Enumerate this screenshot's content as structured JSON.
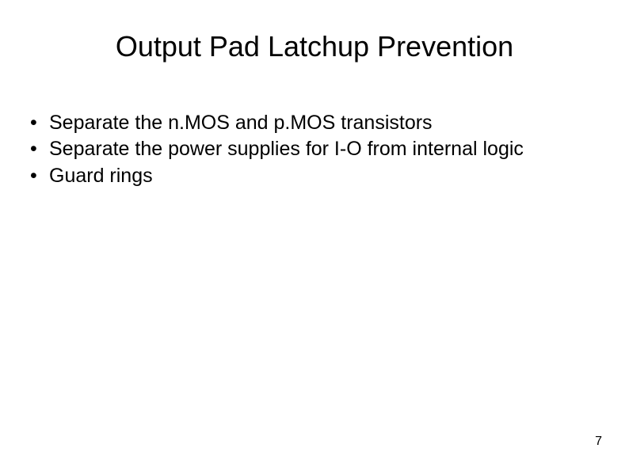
{
  "slide": {
    "title": "Output Pad Latchup Prevention",
    "title_fontsize": 36,
    "title_color": "#000000",
    "background_color": "#ffffff",
    "body_fontsize": 25,
    "body_color": "#000000",
    "bullets": [
      {
        "marker": "•",
        "text": "Separate the n.MOS and p.MOS transistors"
      },
      {
        "marker": "•",
        "text": "Separate the power supplies for I-O from internal logic"
      },
      {
        "marker": "•",
        "text": "Guard rings"
      }
    ],
    "page_number": "7",
    "page_number_fontsize": 16
  }
}
